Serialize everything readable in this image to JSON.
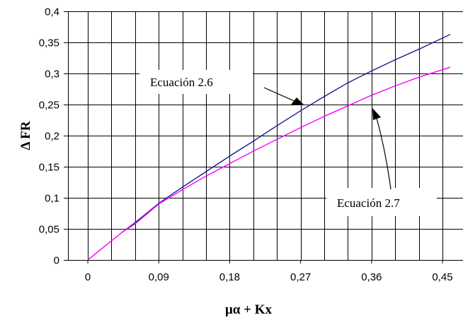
{
  "chart_data": {
    "type": "line",
    "xlabel": "μα + Kx",
    "ylabel": "Δ FR",
    "xlim": [
      0,
      0.45
    ],
    "ylim": [
      0,
      0.4
    ],
    "grid": true,
    "x_ticks": [
      "0",
      "0,09",
      "0,18",
      "0,27",
      "0,36",
      "0,45"
    ],
    "y_ticks": [
      "0",
      "0,05",
      "0,1",
      "0,15",
      "0,2",
      "0,25",
      "0,3",
      "0,35",
      "0,4"
    ],
    "colors": {
      "series_2_6": "#1c1c8c",
      "series_2_7": "#ff00ff"
    },
    "series": [
      {
        "name": "Ecuación 2.6",
        "x": [
          0.044,
          0.06,
          0.09,
          0.12,
          0.15,
          0.18,
          0.21,
          0.24,
          0.27,
          0.3,
          0.33,
          0.36,
          0.39,
          0.42,
          0.46
        ],
        "y": [
          0.045,
          0.06,
          0.091,
          0.117,
          0.142,
          0.167,
          0.191,
          0.216,
          0.24,
          0.263,
          0.285,
          0.304,
          0.322,
          0.339,
          0.363
        ]
      },
      {
        "name": "Ecuación 2.7",
        "x": [
          0.0,
          0.044,
          0.06,
          0.09,
          0.12,
          0.15,
          0.18,
          0.21,
          0.24,
          0.27,
          0.3,
          0.33,
          0.36,
          0.39,
          0.42,
          0.46
        ],
        "y": [
          0.0,
          0.045,
          0.058,
          0.09,
          0.113,
          0.135,
          0.155,
          0.175,
          0.194,
          0.213,
          0.231,
          0.248,
          0.265,
          0.28,
          0.294,
          0.31
        ]
      }
    ],
    "annotations": [
      {
        "text": "Ecuación 2.6",
        "series": 0
      },
      {
        "text": "Ecuación 2.7",
        "series": 1
      }
    ]
  }
}
